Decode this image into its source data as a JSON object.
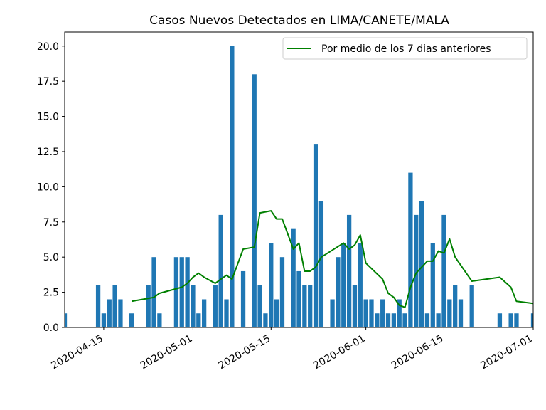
{
  "chart_data": {
    "type": "bar",
    "title": "Casos Nuevos Detectados en LIMA/CANETE/MALA",
    "xlabel": "",
    "ylabel": "",
    "x_type": "date",
    "xlim": [
      "2020-04-08",
      "2020-07-01"
    ],
    "ylim": [
      0,
      21
    ],
    "x_ticks": [
      "2020-04-15",
      "2020-05-01",
      "2020-05-15",
      "2020-06-01",
      "2020-06-15",
      "2020-07-01"
    ],
    "y_ticks": [
      "0.0",
      "2.5",
      "5.0",
      "7.5",
      "10.0",
      "12.5",
      "15.0",
      "17.5",
      "20.0"
    ],
    "grid": false,
    "legend": {
      "position": "top-right"
    },
    "colors": {
      "bars": "#1f77b4",
      "line": "#008000"
    },
    "series": [
      {
        "type": "bar",
        "dates": [
          "2020-04-08",
          "2020-04-14",
          "2020-04-15",
          "2020-04-16",
          "2020-04-17",
          "2020-04-18",
          "2020-04-20",
          "2020-04-23",
          "2020-04-24",
          "2020-04-25",
          "2020-04-28",
          "2020-04-29",
          "2020-04-30",
          "2020-05-01",
          "2020-05-02",
          "2020-05-03",
          "2020-05-05",
          "2020-05-06",
          "2020-05-07",
          "2020-05-08",
          "2020-05-10",
          "2020-05-12",
          "2020-05-13",
          "2020-05-14",
          "2020-05-15",
          "2020-05-16",
          "2020-05-17",
          "2020-05-19",
          "2020-05-20",
          "2020-05-21",
          "2020-05-22",
          "2020-05-23",
          "2020-05-24",
          "2020-05-26",
          "2020-05-27",
          "2020-05-28",
          "2020-05-29",
          "2020-05-30",
          "2020-05-31",
          "2020-06-01",
          "2020-06-02",
          "2020-06-03",
          "2020-06-04",
          "2020-06-05",
          "2020-06-06",
          "2020-06-07",
          "2020-06-08",
          "2020-06-09",
          "2020-06-10",
          "2020-06-11",
          "2020-06-12",
          "2020-06-13",
          "2020-06-14",
          "2020-06-15",
          "2020-06-16",
          "2020-06-17",
          "2020-06-18",
          "2020-06-20",
          "2020-06-25",
          "2020-06-27",
          "2020-06-28",
          "2020-07-01"
        ],
        "values": [
          1,
          3,
          1,
          2,
          3,
          2,
          1,
          3,
          5,
          1,
          5,
          5,
          5,
          3,
          1,
          2,
          3,
          8,
          2,
          20,
          4,
          18,
          3,
          1,
          6,
          2,
          5,
          7,
          4,
          3,
          3,
          13,
          9,
          2,
          5,
          6,
          8,
          3,
          6,
          2,
          2,
          1,
          2,
          1,
          1,
          2,
          1,
          11,
          8,
          9,
          1,
          6,
          1,
          8,
          2,
          3,
          2,
          3,
          1,
          1,
          1,
          1
        ]
      },
      {
        "type": "line",
        "name": "Por medio de los 7 dias anteriores",
        "x": [
          "2020-04-20",
          "2020-04-24",
          "2020-04-25",
          "2020-04-29",
          "2020-04-30",
          "2020-05-01",
          "2020-05-02",
          "2020-05-03",
          "2020-05-05",
          "2020-05-06",
          "2020-05-07",
          "2020-05-08",
          "2020-05-10",
          "2020-05-12",
          "2020-05-13",
          "2020-05-15",
          "2020-05-16",
          "2020-05-17",
          "2020-05-19",
          "2020-05-20",
          "2020-05-21",
          "2020-05-22",
          "2020-05-23",
          "2020-05-24",
          "2020-05-28",
          "2020-05-29",
          "2020-05-30",
          "2020-05-31",
          "2020-06-01",
          "2020-06-04",
          "2020-06-05",
          "2020-06-06",
          "2020-06-07",
          "2020-06-08",
          "2020-06-09",
          "2020-06-10",
          "2020-06-12",
          "2020-06-13",
          "2020-06-14",
          "2020-06-15",
          "2020-06-16",
          "2020-06-17",
          "2020-06-18",
          "2020-06-20",
          "2020-06-25",
          "2020-06-27",
          "2020-06-28",
          "2020-07-01"
        ],
        "values": [
          1.86,
          2.14,
          2.43,
          2.86,
          3.14,
          3.57,
          3.86,
          3.57,
          3.14,
          3.43,
          3.71,
          3.43,
          5.57,
          5.71,
          8.14,
          8.29,
          7.71,
          7.71,
          5.57,
          6.0,
          4.0,
          4.0,
          4.29,
          5.0,
          6.0,
          5.57,
          5.86,
          6.57,
          4.57,
          3.43,
          2.43,
          2.14,
          1.57,
          1.43,
          2.86,
          3.86,
          4.71,
          4.71,
          5.43,
          5.29,
          6.29,
          5.0,
          4.43,
          3.29,
          3.57,
          2.86,
          1.86,
          1.71
        ]
      }
    ]
  }
}
